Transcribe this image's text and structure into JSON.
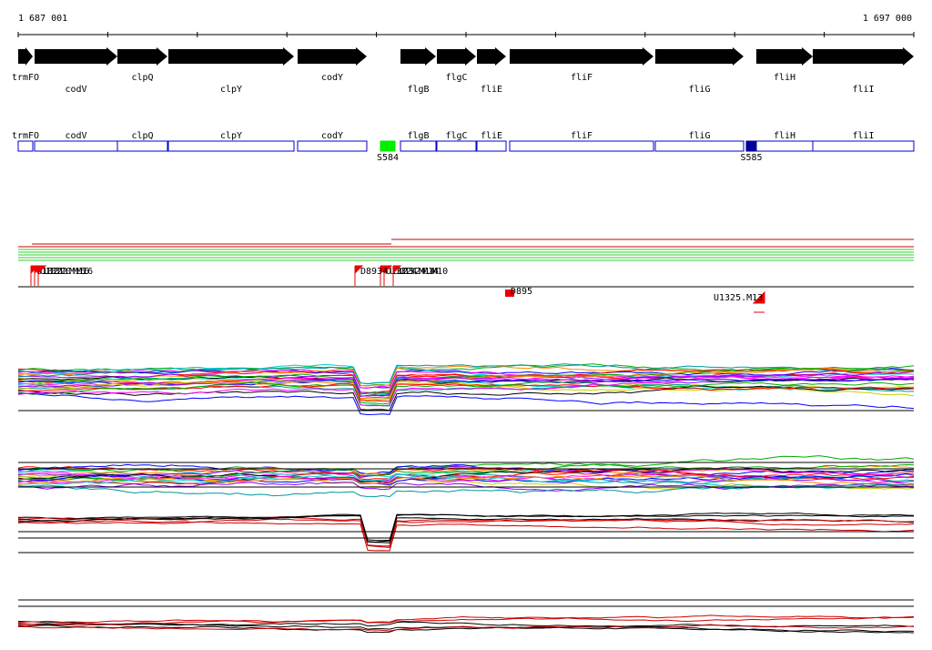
{
  "ruler": {
    "start_label": "1 687 001",
    "end_label": "1 697 000"
  },
  "genes": [
    {
      "name": "trmFO",
      "start": 0,
      "end": 16,
      "strand": "+"
    },
    {
      "name": "codV",
      "start": 18,
      "end": 109,
      "strand": "+"
    },
    {
      "name": "clpQ",
      "start": 109,
      "end": 164,
      "strand": "+"
    },
    {
      "name": "clpY",
      "start": 165,
      "end": 303,
      "strand": "+"
    },
    {
      "name": "codY",
      "start": 307,
      "end": 383,
      "strand": "+"
    },
    {
      "name": "flgB",
      "start": 420,
      "end": 459,
      "strand": "+"
    },
    {
      "name": "flgC",
      "start": 460,
      "end": 503,
      "strand": "+"
    },
    {
      "name": "fliE",
      "start": 504,
      "end": 536,
      "strand": "+"
    },
    {
      "name": "fliF",
      "start": 540,
      "end": 698,
      "strand": "+"
    },
    {
      "name": "fliG",
      "start": 700,
      "end": 797,
      "strand": "+"
    },
    {
      "name": "fliH",
      "start": 811,
      "end": 873,
      "strand": "+"
    },
    {
      "name": "fliI",
      "start": 873,
      "end": 984,
      "strand": "+"
    }
  ],
  "features": [
    {
      "name": "S584",
      "start": 398,
      "end": 414,
      "color": "#00ee00"
    },
    {
      "name": "S585",
      "start": 800,
      "end": 811,
      "color": "#000099"
    }
  ],
  "probes": [
    {
      "name": "U1321.M16",
      "pos": 14,
      "row": 0
    },
    {
      "name": "U1322.M16",
      "pos": 18,
      "row": 0
    },
    {
      "name": "U1320.M16",
      "pos": 22,
      "row": 0
    },
    {
      "name": "U1323.M14",
      "pos": 398,
      "row": 0
    },
    {
      "name": "U1324.M14",
      "pos": 402,
      "row": 0
    },
    {
      "name": "U1324.M10",
      "pos": 412,
      "row": 0
    },
    {
      "name": "D8934",
      "pos": 370,
      "row": 0
    },
    {
      "name": "D895",
      "pos": 535,
      "row": 1
    },
    {
      "name": "U1325.M13",
      "pos": 808,
      "row": 2
    }
  ],
  "colors": {
    "gene_fill": "#000000",
    "annot_box": "#0000cc",
    "marker": "#ee0000",
    "green_lines": "#33cc33",
    "red_lines": "#cc0000"
  }
}
